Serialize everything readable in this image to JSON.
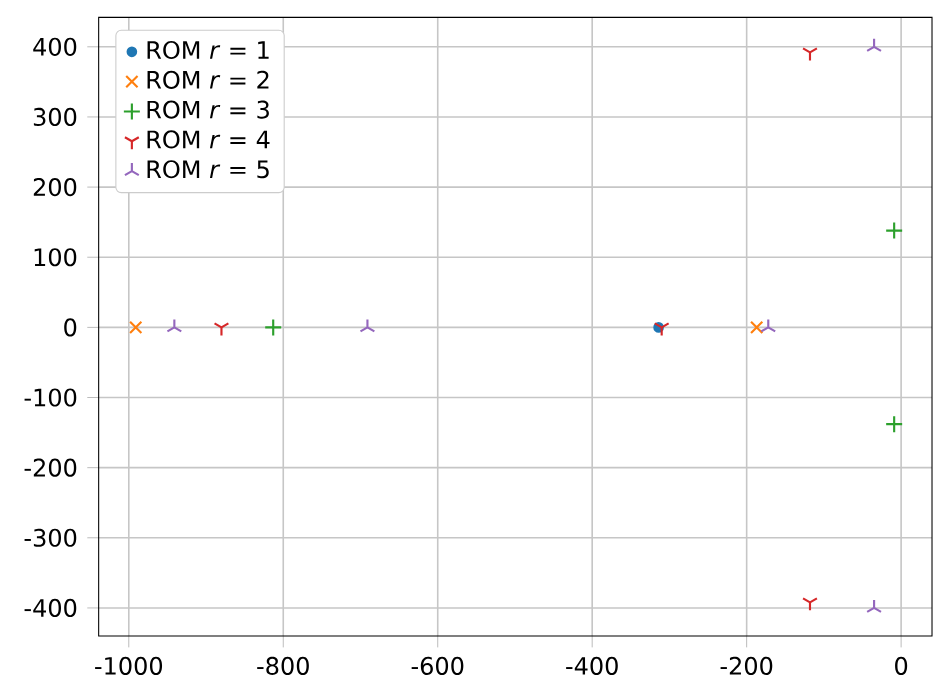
{
  "chart_data": {
    "type": "scatter",
    "series": [
      {
        "name": "ROM *r* = 1",
        "color": "#1f77b4",
        "marker": "circle",
        "x": [
          -314
        ],
        "values": [
          0
        ]
      },
      {
        "name": "ROM *r* = 2",
        "color": "#ff7f0e",
        "marker": "cross",
        "x": [
          -991,
          -187
        ],
        "values": [
          0,
          0
        ]
      },
      {
        "name": "ROM *r* = 3",
        "color": "#2ca02c",
        "marker": "plus",
        "x": [
          -813,
          -9,
          -9
        ],
        "values": [
          0,
          138,
          -138
        ]
      },
      {
        "name": "ROM *r* = 4",
        "color": "#d62728",
        "marker": "cross",
        "x": [
          -880,
          -310,
          -118,
          -118
        ],
        "values": [
          0,
          0,
          392,
          -392
        ]
      },
      {
        "name": "ROM *r* = 5",
        "color": "#9467bd",
        "marker": "cross",
        "x": [
          -941,
          -691,
          -172,
          -35,
          -35
        ],
        "values": [
          0,
          0,
          0,
          400,
          -400
        ]
      }
    ],
    "xlim": [
      -1039,
      40
    ],
    "ylim": [
      -440,
      442
    ],
    "xticks": [
      -1000,
      -800,
      -600,
      -400,
      -200,
      0
    ],
    "yticks": [
      -400,
      -300,
      -200,
      -100,
      0,
      100,
      200,
      300,
      400
    ],
    "grid": true,
    "legend": "top left"
  }
}
